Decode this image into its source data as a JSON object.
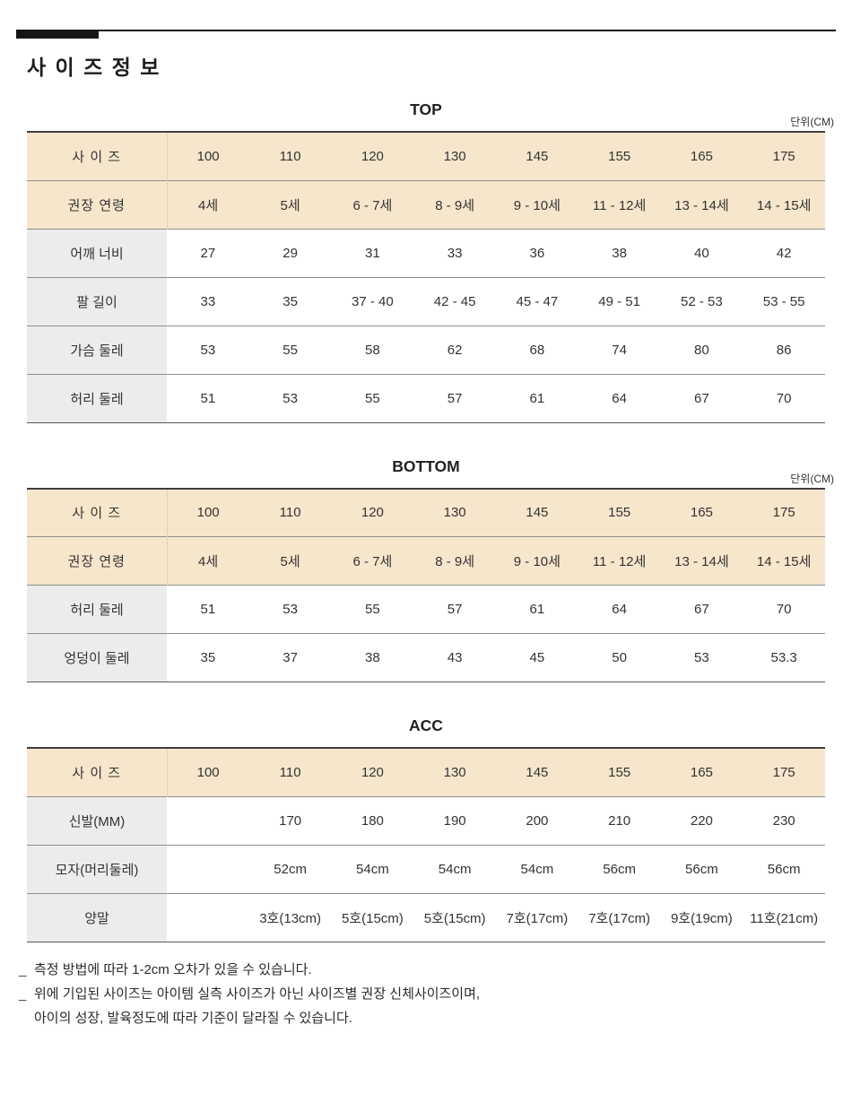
{
  "page_title": "사 이 즈 정 보",
  "colors": {
    "header_row_bg": "#f6e6cb",
    "label_cell_bg": "#ececec",
    "accent_bar": "#151515"
  },
  "sections": [
    {
      "title": "TOP",
      "unit": "단위(CM)",
      "rows": [
        {
          "style": "head",
          "label": "사 이 즈",
          "cells": [
            "100",
            "110",
            "120",
            "130",
            "145",
            "155",
            "165",
            "175"
          ]
        },
        {
          "style": "head",
          "label": "권장 연령",
          "cells": [
            "4세",
            "5세",
            "6 - 7세",
            "8 - 9세",
            "9 - 10세",
            "11 - 12세",
            "13 - 14세",
            "14 - 15세"
          ]
        },
        {
          "style": "body",
          "label": "어깨 너비",
          "cells": [
            "27",
            "29",
            "31",
            "33",
            "36",
            "38",
            "40",
            "42"
          ]
        },
        {
          "style": "body",
          "label": "팔 길이",
          "cells": [
            "33",
            "35",
            "37 - 40",
            "42 - 45",
            "45 - 47",
            "49 - 51",
            "52 - 53",
            "53 - 55"
          ]
        },
        {
          "style": "body",
          "label": "가슴 둘레",
          "cells": [
            "53",
            "55",
            "58",
            "62",
            "68",
            "74",
            "80",
            "86"
          ]
        },
        {
          "style": "body",
          "label": "허리 둘레",
          "cells": [
            "51",
            "53",
            "55",
            "57",
            "61",
            "64",
            "67",
            "70"
          ]
        }
      ]
    },
    {
      "title": "BOTTOM",
      "unit": "단위(CM)",
      "rows": [
        {
          "style": "head",
          "label": "사 이 즈",
          "cells": [
            "100",
            "110",
            "120",
            "130",
            "145",
            "155",
            "165",
            "175"
          ]
        },
        {
          "style": "head",
          "label": "권장 연령",
          "cells": [
            "4세",
            "5세",
            "6 - 7세",
            "8 - 9세",
            "9 - 10세",
            "11 - 12세",
            "13 - 14세",
            "14 - 15세"
          ]
        },
        {
          "style": "body",
          "label": "허리 둘레",
          "cells": [
            "51",
            "53",
            "55",
            "57",
            "61",
            "64",
            "67",
            "70"
          ]
        },
        {
          "style": "body",
          "label": "엉덩이 둘레",
          "cells": [
            "35",
            "37",
            "38",
            "43",
            "45",
            "50",
            "53",
            "53.3"
          ]
        }
      ]
    },
    {
      "title": "ACC",
      "unit": "",
      "rows": [
        {
          "style": "head",
          "label": "사 이 즈",
          "cells": [
            "100",
            "110",
            "120",
            "130",
            "145",
            "155",
            "165",
            "175"
          ]
        },
        {
          "style": "body",
          "label": "신발(MM)",
          "cells": [
            "",
            "170",
            "180",
            "190",
            "200",
            "210",
            "220",
            "230"
          ]
        },
        {
          "style": "body",
          "label": "모자(머리둘레)",
          "cells": [
            "",
            "52cm",
            "54cm",
            "54cm",
            "54cm",
            "56cm",
            "56cm",
            "56cm"
          ]
        },
        {
          "style": "body",
          "label": "양말",
          "cells": [
            "",
            "3호(13cm)",
            "5호(15cm)",
            "5호(15cm)",
            "7호(17cm)",
            "7호(17cm)",
            "9호(19cm)",
            "11호(21cm)"
          ]
        }
      ]
    }
  ],
  "footnotes": [
    {
      "marker": "_",
      "text": "측정 방법에 따라 1-2cm 오차가 있을 수 있습니다."
    },
    {
      "marker": "_",
      "text": "위에 기입된 사이즈는 아이템  실측 사이즈가 아닌 사이즈별 권장 신체사이즈이며,"
    },
    {
      "marker": "",
      "text": "아이의 성장, 발육정도에 따라 기준이 달라질 수 있습니다."
    }
  ]
}
